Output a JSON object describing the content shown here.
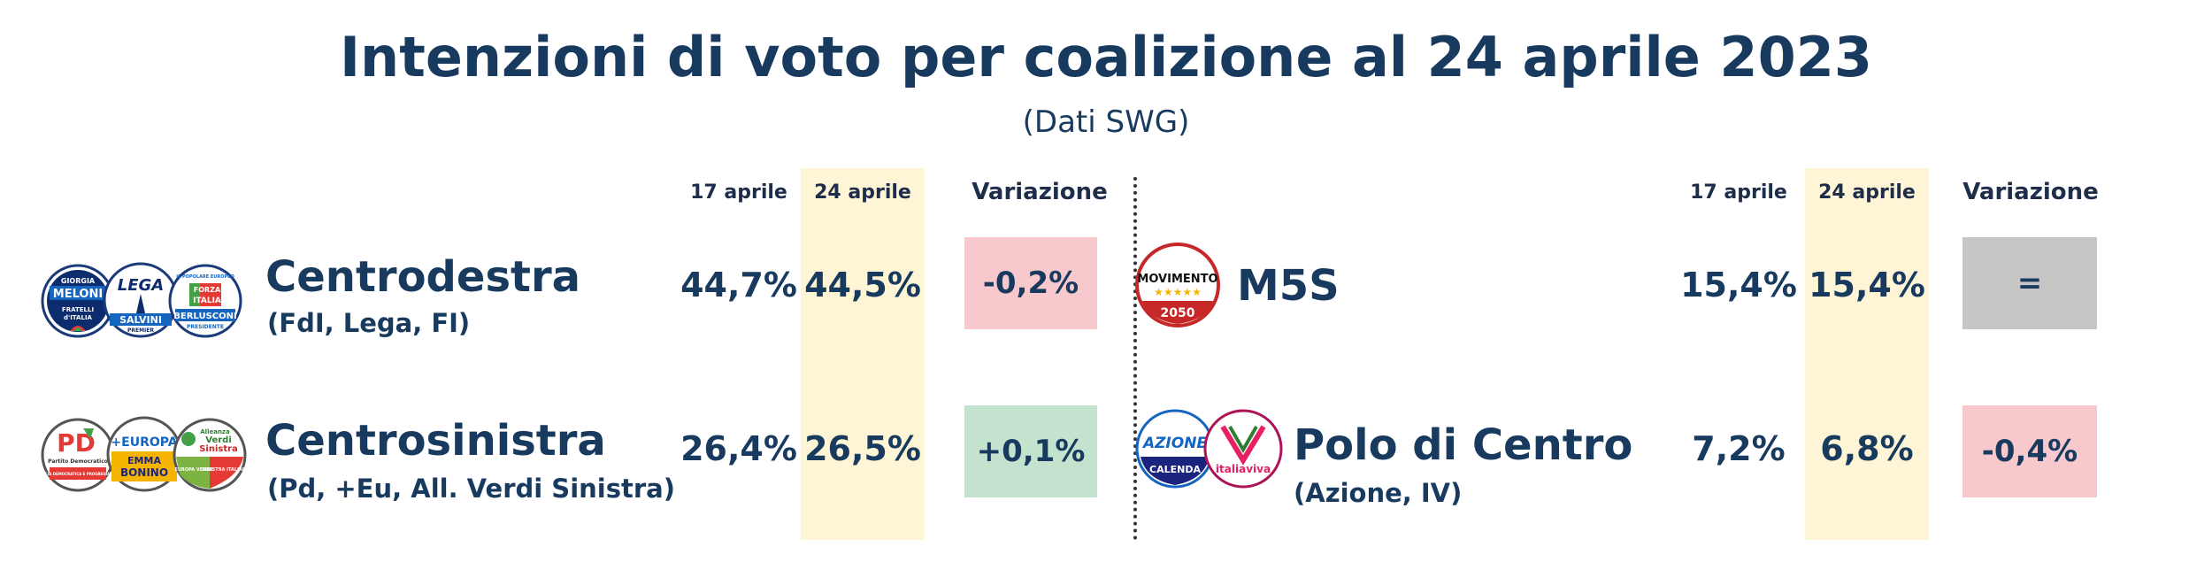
{
  "title": "Intenzioni di voto per coalizione al 24 aprile 2023",
  "subtitle": "(Dati SWG)",
  "colors": {
    "text": "#173a5e",
    "highlight": "#fdf5d5",
    "negative": "#f8c9cc",
    "positive": "#c3e3cf",
    "neutral": "#c6c6c6"
  },
  "headers": {
    "prev": "17 aprile",
    "curr": "24 aprile",
    "var": "Variazione"
  },
  "rows": [
    {
      "name": "Centrodestra",
      "sub": "(FdI, Lega, FI)",
      "prev": "44,7%",
      "curr": "44,5%",
      "var": "-0,2%",
      "status": "negative"
    },
    {
      "name": "Centrosinistra",
      "sub": "(Pd, +Eu, All. Verdi Sinistra)",
      "prev": "26,4%",
      "curr": "26,5%",
      "var": "+0,1%",
      "status": "positive"
    },
    {
      "name": "M5S",
      "sub": "",
      "prev": "15,4%",
      "curr": "15,4%",
      "var": "=",
      "status": "neutral"
    },
    {
      "name": "Polo di Centro",
      "sub": "(Azione, IV)",
      "prev": "7,2%",
      "curr": "6,8%",
      "var": "-0,4%",
      "status": "negative"
    }
  ],
  "logos": {
    "fdi": [
      "GIORGIA",
      "MELONI",
      "FRATELLI",
      "d'ITALIA"
    ],
    "lega": [
      "LEGA",
      "SALVINI",
      "PREMIER"
    ],
    "fi": [
      "FORZA",
      "ITALIA",
      "BERLUSCONI",
      "PRESIDENTE",
      "IL POPOLARE EUROPEO"
    ],
    "pd": [
      "PD",
      "Partito Democratico",
      "ITALIA DEMOCRATICA E PROGRESSISTA"
    ],
    "europa": [
      "+EUROPA",
      "EMMA",
      "BONINO"
    ],
    "avs": [
      "Alleanza",
      "Verdi",
      "Sinistra",
      "EUROPA VERDE",
      "SINISTRA ITALIANA"
    ],
    "m5s": [
      "MOVIMENTO",
      "2050"
    ],
    "azione": [
      "AZIONE",
      "CALENDA"
    ],
    "iv": [
      "italiaviva"
    ]
  },
  "chart_data": {
    "type": "table",
    "title": "Intenzioni di voto per coalizione al 24 aprile 2023",
    "subtitle": "(Dati SWG)",
    "columns": [
      "17 aprile",
      "24 aprile",
      "Variazione"
    ],
    "categories": [
      "Centrodestra",
      "Centrosinistra",
      "M5S",
      "Polo di Centro"
    ],
    "series": [
      {
        "name": "17 aprile",
        "values": [
          44.7,
          26.4,
          15.4,
          7.2
        ]
      },
      {
        "name": "24 aprile",
        "values": [
          44.5,
          26.5,
          15.4,
          6.8
        ]
      }
    ],
    "variation": [
      -0.2,
      0.1,
      0,
      -0.4
    ]
  }
}
